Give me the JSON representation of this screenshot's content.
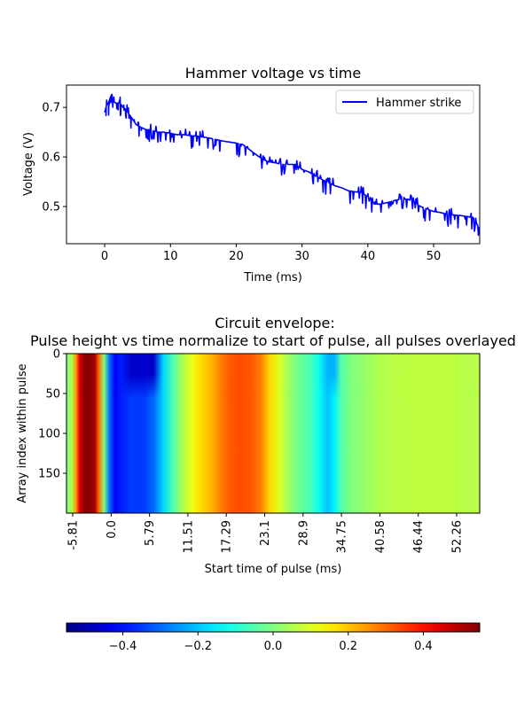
{
  "chart_data": [
    {
      "type": "line",
      "title": "Hammer voltage vs time",
      "xlabel": "Time (ms)",
      "ylabel": "Voltage (V)",
      "xlim": [
        -5.8,
        57.0
      ],
      "ylim": [
        0.425,
        0.745
      ],
      "xticks": [
        0,
        10,
        20,
        30,
        40,
        50
      ],
      "yticks": [
        0.5,
        0.6,
        0.7
      ],
      "legend_position": "top-right",
      "grid": false,
      "series": [
        {
          "name": "Hammer strike",
          "color": "#0000ff",
          "x": [
            0.0,
            0.3,
            0.6,
            1.0,
            1.3,
            1.8,
            2.3,
            2.8,
            3.3,
            3.8,
            4.3,
            4.8,
            5.5,
            6.3,
            7.0,
            8.0,
            9.0,
            10.0,
            11.0,
            12.0,
            13.0,
            14.0,
            15.0,
            16.0,
            17.0,
            18.0,
            19.0,
            20.0,
            21.0,
            22.0,
            23.0,
            24.0,
            25.0,
            26.0,
            27.0,
            28.0,
            29.0,
            30.0,
            31.0,
            32.0,
            33.0,
            34.0,
            35.0,
            36.0,
            37.0,
            38.0,
            39.0,
            40.0,
            41.0,
            42.0,
            43.0,
            44.0,
            45.0,
            46.0,
            47.0,
            48.0,
            49.0,
            50.0,
            51.0,
            52.0,
            53.0,
            54.0,
            55.0,
            56.0,
            57.0
          ],
          "values": [
            0.69,
            0.705,
            0.71,
            0.725,
            0.712,
            0.708,
            0.71,
            0.7,
            0.695,
            0.685,
            0.675,
            0.665,
            0.66,
            0.655,
            0.655,
            0.65,
            0.65,
            0.648,
            0.645,
            0.645,
            0.643,
            0.642,
            0.64,
            0.638,
            0.635,
            0.632,
            0.63,
            0.628,
            0.625,
            0.615,
            0.605,
            0.595,
            0.59,
            0.588,
            0.585,
            0.585,
            0.585,
            0.575,
            0.57,
            0.562,
            0.555,
            0.548,
            0.542,
            0.538,
            0.532,
            0.53,
            0.528,
            0.52,
            0.505,
            0.505,
            0.508,
            0.512,
            0.515,
            0.515,
            0.51,
            0.5,
            0.495,
            0.49,
            0.488,
            0.485,
            0.483,
            0.482,
            0.48,
            0.478,
            0.455
          ]
        }
      ]
    },
    {
      "type": "heatmap",
      "title": "Circuit envelope:\nPulse height vs time normalize to start of pulse, all pulses overlayed",
      "title_lines": [
        "Circuit envelope:",
        "Pulse height vs time normalize to start of pulse, all pulses overlayed"
      ],
      "xlabel": "Start time of pulse (ms)",
      "ylabel": "Array index within pulse",
      "xticklabels": [
        "-5.81",
        "0.0",
        "5.79",
        "11.51",
        "17.29",
        "23.1",
        "28.9",
        "34.75",
        "40.58",
        "46.44",
        "52.26"
      ],
      "yticks": [
        0,
        50,
        100,
        150
      ],
      "xlim": [
        -7.0,
        57.0
      ],
      "ylim": [
        200,
        0
      ],
      "colormap": "jet",
      "colorbar": {
        "range": [
          -0.55,
          0.55
        ],
        "ticks": [
          -0.4,
          -0.2,
          0.0,
          0.2,
          0.4
        ],
        "ticklabels": [
          "−0.4",
          "−0.2",
          "0.0",
          "0.2",
          "0.4"
        ],
        "orientation": "horizontal"
      },
      "column_profile": {
        "time_ms": [
          -7.0,
          -6.2,
          -5.5,
          -5.0,
          -4.2,
          -3.2,
          -2.6,
          -2.0,
          -1.2,
          -0.3,
          0.5,
          1.5,
          3.0,
          5.0,
          6.5,
          8.0,
          9.5,
          11.0,
          12.5,
          14.0,
          15.5,
          17.0,
          18.5,
          20.0,
          21.5,
          23.0,
          24.5,
          26.0,
          27.5,
          29.0,
          30.5,
          32.0,
          33.5,
          34.5,
          35.5,
          37.0,
          39.0,
          41.0,
          43.0,
          46.0,
          49.0,
          52.0,
          55.0,
          57.0
        ],
        "value": [
          0.0,
          0.05,
          0.25,
          0.45,
          0.54,
          0.54,
          0.5,
          0.3,
          0.0,
          -0.3,
          -0.42,
          -0.38,
          -0.35,
          -0.35,
          -0.3,
          -0.18,
          -0.05,
          0.05,
          0.12,
          0.18,
          0.22,
          0.28,
          0.32,
          0.33,
          0.32,
          0.28,
          0.18,
          0.1,
          0.03,
          -0.02,
          -0.05,
          -0.12,
          -0.2,
          -0.15,
          -0.05,
          0.0,
          0.02,
          0.05,
          0.06,
          0.07,
          0.07,
          0.07,
          0.06,
          0.06
        ]
      }
    }
  ]
}
